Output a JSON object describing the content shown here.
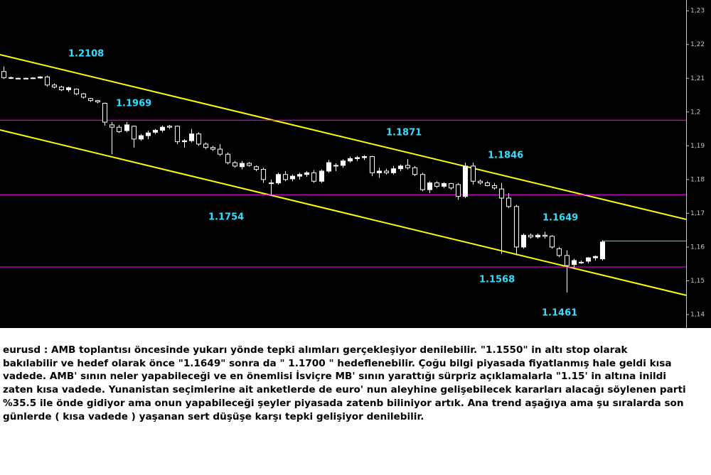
{
  "chart_data": {
    "type": "candlestick",
    "open": [
      1.212,
      1.2102,
      1.21,
      1.21,
      1.21,
      1.2101,
      1.2104,
      1.208,
      1.2074,
      1.2066,
      1.2068,
      1.2054,
      1.204,
      1.2034,
      1.2026,
      1.1962,
      1.1955,
      1.1945,
      1.1958,
      1.192,
      1.193,
      1.194,
      1.1946,
      1.1958,
      1.1958,
      1.1912,
      1.1915,
      1.1935,
      1.1905,
      1.1895,
      1.189,
      1.1875,
      1.185,
      1.1838,
      1.1848,
      1.1838,
      1.183,
      1.179,
      1.179,
      1.1815,
      1.1802,
      1.181,
      1.1815,
      1.182,
      1.1795,
      1.1825,
      1.184,
      1.1842,
      1.1855,
      1.1862,
      1.1865,
      1.1868,
      1.182,
      1.1825,
      1.182,
      1.1832,
      1.1842,
      1.1835,
      1.1815,
      1.177,
      1.179,
      1.178,
      1.1788,
      1.1785,
      1.175,
      1.184,
      1.1795,
      1.179,
      1.1782,
      1.1772,
      1.1745,
      1.172,
      1.16,
      1.1635,
      1.163,
      1.1635,
      1.1632,
      1.1595,
      1.1575,
      1.1548,
      1.1555,
      1.1558,
      1.1568,
      1.1565
    ],
    "high": [
      1.2135,
      1.2105,
      1.2102,
      1.2102,
      1.2103,
      1.2106,
      1.2108,
      1.2085,
      1.2078,
      1.2075,
      1.207,
      1.2056,
      1.2042,
      1.2036,
      1.2028,
      1.197,
      1.1962,
      1.197,
      1.196,
      1.1935,
      1.1945,
      1.195,
      1.196,
      1.1962,
      1.196,
      1.192,
      1.195,
      1.194,
      1.191,
      1.19,
      1.1905,
      1.188,
      1.1855,
      1.1855,
      1.1852,
      1.1842,
      1.1835,
      1.18,
      1.182,
      1.1825,
      1.1815,
      1.182,
      1.1825,
      1.1828,
      1.183,
      1.1858,
      1.1848,
      1.186,
      1.1868,
      1.187,
      1.1872,
      1.187,
      1.1835,
      1.1832,
      1.184,
      1.1845,
      1.186,
      1.184,
      1.182,
      1.1795,
      1.1795,
      1.1792,
      1.179,
      1.179,
      1.185,
      1.185,
      1.18,
      1.1795,
      1.179,
      1.179,
      1.176,
      1.1725,
      1.164,
      1.164,
      1.164,
      1.1645,
      1.1635,
      1.16,
      1.159,
      1.1565,
      1.156,
      1.157,
      1.1575,
      1.162
    ],
    "low": [
      1.2098,
      1.2098,
      1.2098,
      1.2098,
      1.2098,
      1.2099,
      1.2075,
      1.207,
      1.2062,
      1.206,
      1.205,
      1.204,
      1.203,
      1.2026,
      1.196,
      1.1875,
      1.1938,
      1.194,
      1.1895,
      1.1915,
      1.192,
      1.1935,
      1.194,
      1.195,
      1.1905,
      1.1895,
      1.191,
      1.19,
      1.189,
      1.1885,
      1.187,
      1.1845,
      1.1835,
      1.183,
      1.1838,
      1.1825,
      1.179,
      1.1752,
      1.1785,
      1.1795,
      1.1795,
      1.18,
      1.1808,
      1.179,
      1.179,
      1.182,
      1.1825,
      1.1835,
      1.185,
      1.1855,
      1.1858,
      1.181,
      1.1805,
      1.1815,
      1.1815,
      1.1825,
      1.183,
      1.181,
      1.1765,
      1.176,
      1.1775,
      1.1775,
      1.177,
      1.174,
      1.1745,
      1.1785,
      1.1785,
      1.178,
      1.177,
      1.158,
      1.1715,
      1.1575,
      1.1595,
      1.1625,
      1.1625,
      1.1625,
      1.1595,
      1.157,
      1.1465,
      1.154,
      1.155,
      1.1552,
      1.156,
      1.156
    ],
    "close": [
      1.2102,
      1.21,
      1.21,
      1.21,
      1.2101,
      1.2104,
      1.208,
      1.2074,
      1.2066,
      1.2072,
      1.2054,
      1.2044,
      1.2034,
      1.203,
      1.197,
      1.1955,
      1.1942,
      1.1962,
      1.192,
      1.193,
      1.1938,
      1.1946,
      1.1955,
      1.1955,
      1.1912,
      1.1915,
      1.1935,
      1.1905,
      1.1895,
      1.189,
      1.1875,
      1.185,
      1.184,
      1.1848,
      1.1842,
      1.183,
      1.18,
      1.179,
      1.1815,
      1.18,
      1.181,
      1.1815,
      1.182,
      1.1795,
      1.1825,
      1.185,
      1.1842,
      1.1855,
      1.1862,
      1.1865,
      1.1868,
      1.182,
      1.1825,
      1.182,
      1.1832,
      1.184,
      1.1835,
      1.1815,
      1.177,
      1.179,
      1.178,
      1.1788,
      1.1775,
      1.175,
      1.184,
      1.1795,
      1.179,
      1.1782,
      1.1775,
      1.1745,
      1.172,
      1.16,
      1.1635,
      1.163,
      1.1635,
      1.1632,
      1.16,
      1.1575,
      1.1545,
      1.156,
      1.1555,
      1.1568,
      1.1572,
      1.1615
    ],
    "up_color": "#ffffff",
    "down_color": "#000000",
    "candle_outline": "#ffffff",
    "xlim": [
      -0.5,
      94.6
    ],
    "ylim": [
      1.136,
      1.2332
    ],
    "yticks": [
      {
        "value": 1.23,
        "label": "1,23"
      },
      {
        "value": 1.22,
        "label": "1,22"
      },
      {
        "value": 1.21,
        "label": "1,21"
      },
      {
        "value": 1.2,
        "label": "1,2"
      },
      {
        "value": 1.19,
        "label": "1,19"
      },
      {
        "value": 1.18,
        "label": "1,18"
      },
      {
        "value": 1.17,
        "label": "1,17"
      },
      {
        "value": 1.16,
        "label": "1,16"
      },
      {
        "value": 1.15,
        "label": "1,15"
      },
      {
        "value": 1.14,
        "label": "1,14"
      }
    ],
    "background": "#000000",
    "lines": [
      {
        "color": "#ffff00",
        "x": [
          -0.5,
          94.6
        ],
        "y": [
          1.217,
          1.1682
        ]
      },
      {
        "color": "#ffff00",
        "x": [
          -0.5,
          94.6
        ],
        "y": [
          1.1947,
          1.1457
        ]
      },
      {
        "color": "#ff00ff",
        "x": [
          -0.5,
          94.6
        ],
        "y": [
          1.1976,
          1.1976
        ]
      },
      {
        "color": "#ff00ff",
        "x": [
          -0.5,
          94.6
        ],
        "y": [
          1.1755,
          1.1755
        ]
      },
      {
        "color": "#ff00ff",
        "x": [
          -0.5,
          94.6
        ],
        "y": [
          1.1541,
          1.1541
        ]
      },
      {
        "color": "#00ffff",
        "x": [
          83,
          94.6
        ],
        "y": [
          1.1618,
          1.1618
        ]
      }
    ],
    "annotations": [
      "1.2108",
      "1.1969",
      "1.1871",
      "1.1846",
      "1.1754",
      "1.1649",
      "1.1568",
      "1.1461"
    ]
  },
  "caption": [
    "eurusd : AMB toplantısı öncesinde yukarı yönde tepki alımları gerçekleşiyor denilebilir. \"1.1550\" in altı stop olarak",
    "bakılabilir ve hedef olarak önce \"1.1649\" sonra da \" 1.1700 \" hedeflenebilir. Çoğu bilgi piyasada fiyatlanmış hale geldi kısa",
    "vadede. AMB' sının neler yapabileceği ve en önemlisi İsviçre MB' sının yarattığı sürpriz açıklamalarla \"1.15' in altına inildi",
    "zaten kısa vadede. Yunanistan seçimlerine ait anketlerde de euro' nun aleyhine gelişebilecek kararları alacağı söylenen parti",
    "%35.5 ile önde gidiyor ama onun yapabileceği şeyler piyasada zatenb biliniyor artık. Ana trend aşağıya ama şu sıralarda son",
    "günlerde ( kısa vadede ) yaşanan sert düşüşe karşı tepki gelişiyor denilebilir."
  ]
}
